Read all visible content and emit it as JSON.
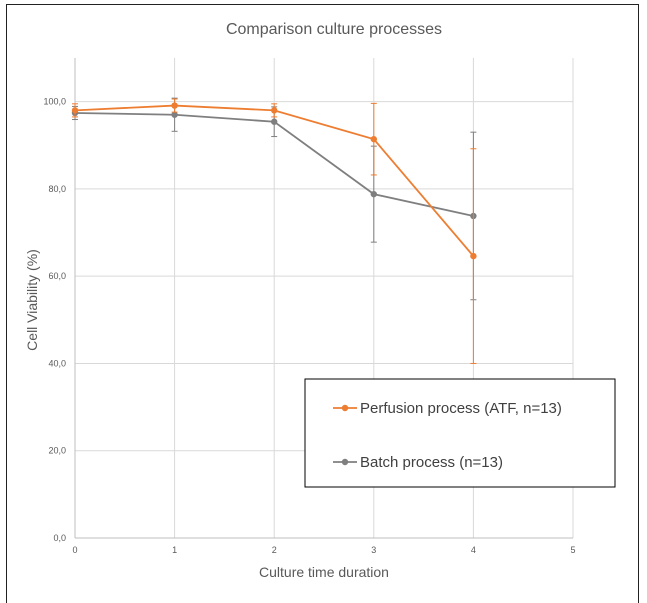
{
  "chart_data": {
    "type": "line",
    "title": "Comparison culture processes",
    "xlabel": "Culture time duration",
    "ylabel": "Cell Viability (%)",
    "xlim": [
      0,
      5
    ],
    "ylim": [
      0,
      110
    ],
    "x_ticks": [
      0,
      1,
      2,
      3,
      4,
      5
    ],
    "x_tick_labels": [
      "0",
      "1",
      "2",
      "3",
      "4",
      "5"
    ],
    "y_ticks": [
      0,
      20,
      40,
      60,
      80,
      100
    ],
    "y_tick_labels": [
      "0,0",
      "20,0",
      "40,0",
      "60,0",
      "80,0",
      "100,0"
    ],
    "grid": true,
    "legend_position": "bottom-right",
    "series": [
      {
        "name": "Perfusion process (ATF, n=13)",
        "color": "#ED7D31",
        "x": [
          0,
          1,
          2,
          3,
          4
        ],
        "y": [
          98.0,
          99.1,
          98.0,
          91.4,
          64.6
        ],
        "error": [
          1.5,
          1.5,
          1.5,
          8.2,
          24.6
        ]
      },
      {
        "name": "Batch process (n=13)",
        "color": "#7F7F7F",
        "x": [
          0,
          1,
          2,
          3,
          4
        ],
        "y": [
          97.4,
          97.0,
          95.4,
          78.8,
          73.8
        ],
        "error": [
          1.5,
          3.8,
          3.4,
          11.0,
          19.2
        ]
      }
    ]
  }
}
